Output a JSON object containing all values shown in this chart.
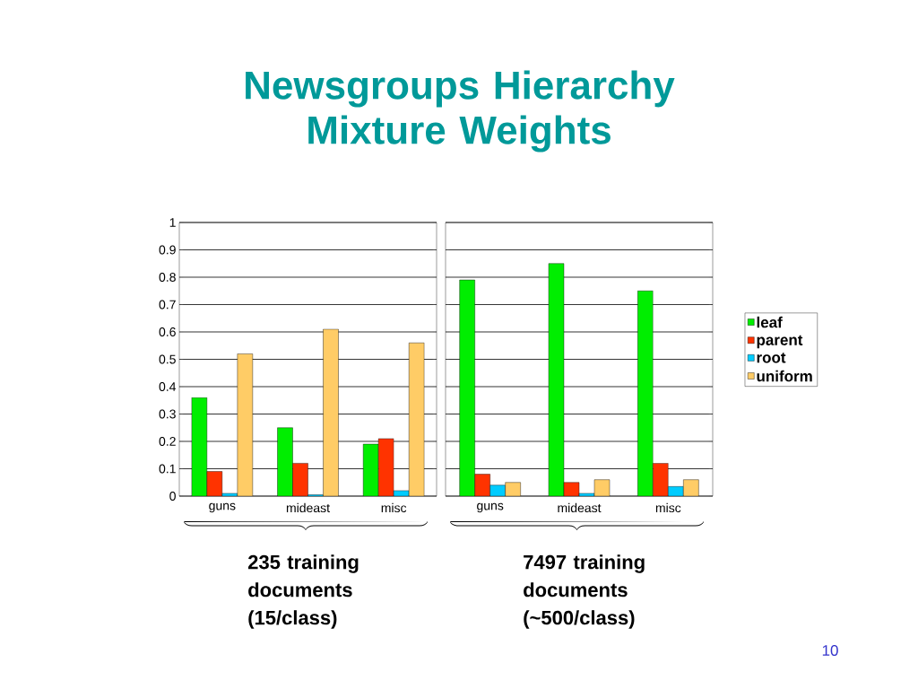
{
  "chart_data": [
    {
      "type": "bar",
      "title": "Newsgroups Hierarchy Mixture Weights",
      "categories": [
        "guns",
        "mideast",
        "misc"
      ],
      "series": [
        {
          "color": "#00ee00",
          "values": [
            0.36,
            0.25,
            0.19
          ]
        },
        {
          "color": "#ff3300",
          "values": [
            0.09,
            0.12,
            0.21
          ]
        },
        {
          "color": "#00ccff",
          "values": [
            0.01,
            0.005,
            0.02
          ]
        },
        {
          "color": "#ffcc66",
          "values": [
            0.52,
            0.61,
            0.56
          ]
        }
      ],
      "ylim": [
        0,
        1
      ],
      "yticks": [
        0,
        0.1,
        0.2,
        0.3,
        0.4,
        0.5,
        0.6,
        0.7,
        0.8,
        0.9,
        1
      ],
      "grid": "y",
      "annotations": [
        "235 training documents (15/class)"
      ]
    },
    {
      "type": "bar",
      "categories": [
        "guns",
        "mideast",
        "misc"
      ],
      "series": [
        {
          "name": "leaf",
          "color": "#00ee00",
          "values": [
            0.79,
            0.85,
            0.75
          ]
        },
        {
          "name": "parent",
          "color": "#ff3300",
          "values": [
            0.08,
            0.05,
            0.12
          ]
        },
        {
          "name": "root",
          "color": "#00ccff",
          "values": [
            0.04,
            0.01,
            0.035
          ]
        },
        {
          "name": "uniform",
          "color": "#ffcc66",
          "values": [
            0.05,
            0.06,
            0.06
          ]
        }
      ],
      "ylim": [
        0,
        1
      ],
      "yticks": [
        0,
        0.1,
        0.2,
        0.3,
        0.4,
        0.5,
        0.6,
        0.7,
        0.8,
        0.9,
        1
      ],
      "grid": "y",
      "tick_labels": "x",
      "legend": "right",
      "annotations": [
        "7497 training documents (~500/class)",
        "10"
      ]
    }
  ]
}
